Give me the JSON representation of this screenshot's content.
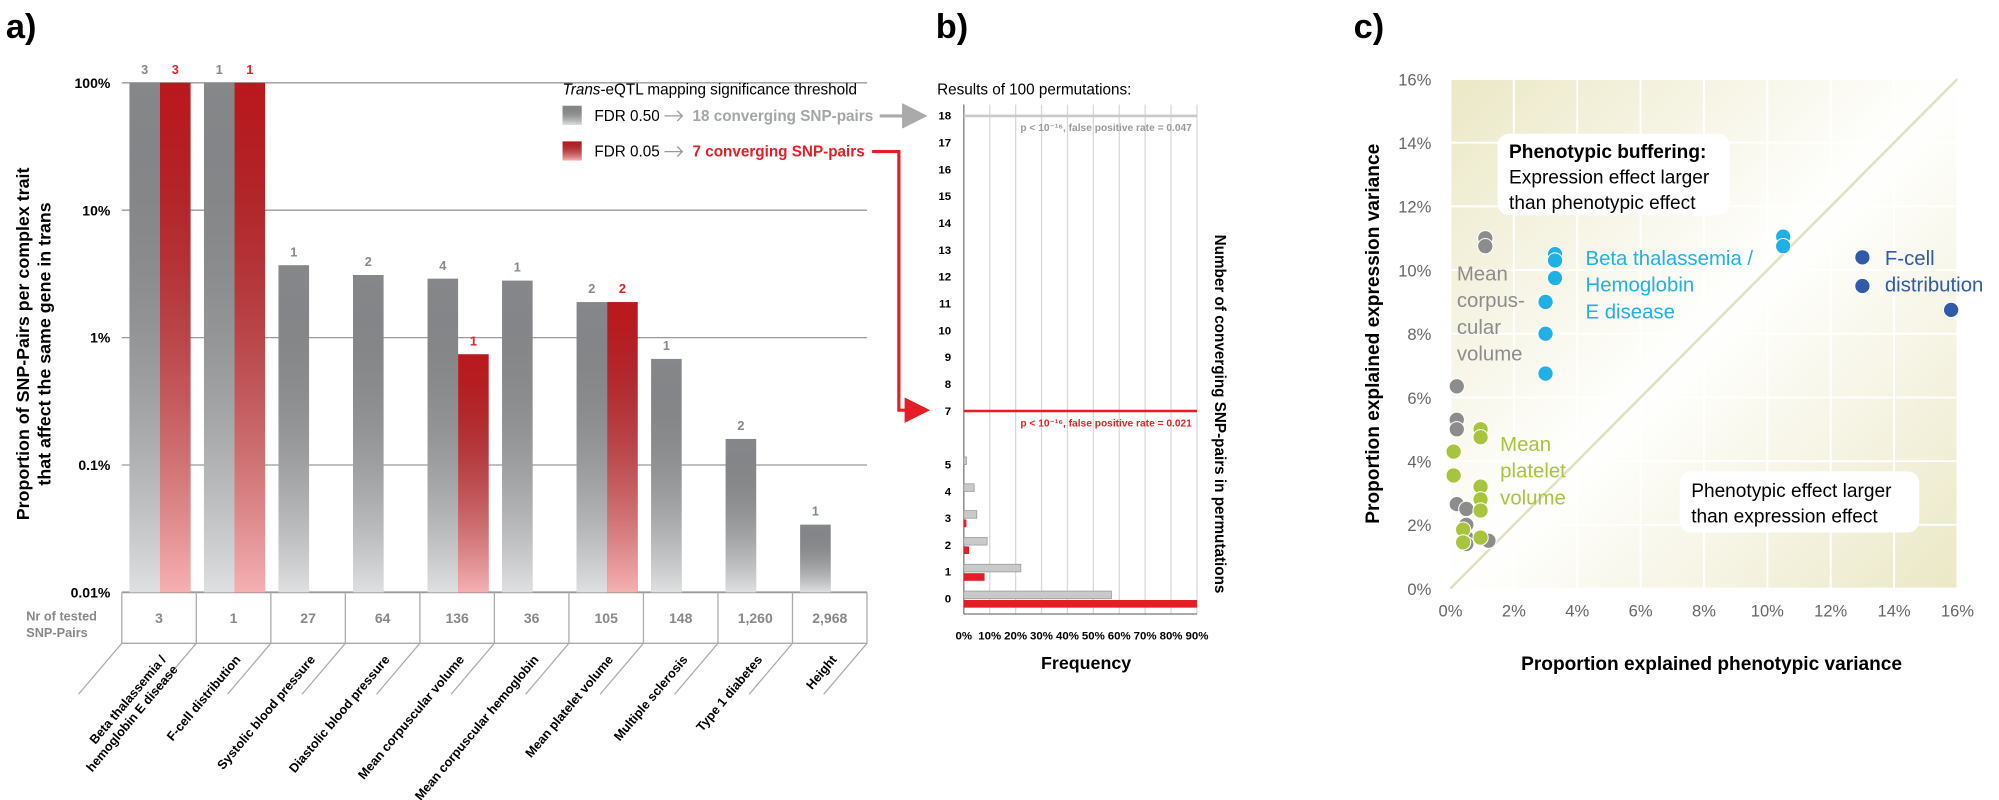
{
  "chart_data": [
    {
      "type": "bar",
      "panel_label": "a)",
      "log_scale": true,
      "y_label": [
        "Proportion of SNP-Pairs per complex trait",
        "that affect the same gene in trans"
      ],
      "categories": [
        [
          "Beta thalassemia /",
          "hemoglobin E disease"
        ],
        "F-cell distribution",
        "Systolic blood pressure",
        "Diastolic blood pressure",
        "Mean corpuscular volume",
        "Mean corpuscular hemoglobin",
        "Mean platelet volume",
        "Multiple sclerosis",
        "Type 1 diabetes",
        "Height"
      ],
      "series": [
        {
          "name": "FDR 0.50",
          "color": "#a3a5a8",
          "values": [
            100,
            100,
            3.7,
            3.1,
            2.9,
            2.8,
            1.9,
            0.68,
            0.16,
            0.034
          ],
          "counts": [
            3,
            1,
            1,
            2,
            4,
            1,
            2,
            1,
            2,
            1
          ],
          "result": "18 converging SNP-pairs"
        },
        {
          "name": "FDR 0.05",
          "color": "#e31e24",
          "values": [
            100,
            100,
            null,
            null,
            0.74,
            null,
            1.9,
            null,
            null,
            null
          ],
          "counts": [
            3,
            1,
            null,
            null,
            1,
            null,
            2,
            null,
            null,
            null
          ],
          "result": "7 converging SNP-pairs"
        }
      ],
      "tested_label": [
        "Nr of tested",
        "SNP-Pairs"
      ],
      "tested": [
        "3",
        "1",
        "27",
        "64",
        "136",
        "36",
        "105",
        "148",
        "1,260",
        "2,968"
      ],
      "legend_title": [
        "Trans",
        "-eQTL mapping significance threshold"
      ],
      "ylim": [
        0.01,
        100
      ],
      "yticks": [
        {
          "value": 0.01,
          "label": "0.01%"
        },
        {
          "value": 0.1,
          "label": "0.1%"
        },
        {
          "value": 1,
          "label": "1%"
        },
        {
          "value": 10,
          "label": "10%"
        },
        {
          "value": 100,
          "label": "100%"
        }
      ],
      "grid": true
    },
    {
      "type": "barh",
      "panel_label": "b)",
      "title": "Results of 100 permutations:",
      "x_label": "Frequency",
      "y_label": "Number of converging SNP-pairs in permutations",
      "categories": [
        0,
        1,
        2,
        3,
        4,
        5,
        null,
        7,
        8,
        9,
        10,
        11,
        12,
        13,
        14,
        15,
        16,
        17,
        18
      ],
      "series": [
        {
          "color": "#c9c9c9",
          "values": [
            57,
            22,
            9,
            5,
            4,
            1,
            0,
            0,
            0,
            0,
            0,
            0,
            0,
            0,
            0,
            0,
            0,
            0,
            0
          ],
          "threshold": 18,
          "threshold_label": "p < 10⁻¹⁶, false positive rate = 0.047"
        },
        {
          "color": "#e31e24",
          "values": [
            90,
            8,
            2,
            1,
            0,
            0,
            0,
            0,
            0,
            0,
            0,
            0,
            0,
            0,
            0,
            0,
            0,
            0,
            0
          ],
          "threshold": 7,
          "threshold_label": "p < 10⁻¹⁶, false positive rate = 0.021"
        }
      ],
      "xlim": [
        0,
        90
      ],
      "xticks": [
        {
          "value": 0,
          "label": "0%"
        },
        {
          "value": 10,
          "label": "10%"
        },
        {
          "value": 20,
          "label": "20%"
        },
        {
          "value": 30,
          "label": "30%"
        },
        {
          "value": 40,
          "label": "40%"
        },
        {
          "value": 50,
          "label": "50%"
        },
        {
          "value": 60,
          "label": "60%"
        },
        {
          "value": 70,
          "label": "70%"
        },
        {
          "value": 80,
          "label": "80%"
        },
        {
          "value": 90,
          "label": "90%"
        }
      ],
      "grid": true
    },
    {
      "type": "scatter",
      "panel_label": "c)",
      "x_label": "Proportion explained phenotypic variance",
      "y_label": "Proportion explained expression variance",
      "buffering_note": [
        "Phenotypic buffering:",
        "Expression effect larger",
        "than phenotypic effect"
      ],
      "phenotypic_note": [
        "Phenotypic effect larger",
        "than expression effect"
      ],
      "series": [
        {
          "name": [
            "Mean",
            "corpus-",
            "cular",
            "volume"
          ],
          "color": "#8c8c8c",
          "x": [
            1.1,
            1.1,
            0.2,
            0.2,
            0.2,
            0.2,
            0.5,
            0.5,
            0.5,
            0.5,
            1.2
          ],
          "y": [
            11.0,
            10.75,
            6.35,
            5.3,
            5.0,
            2.65,
            2.5,
            2.0,
            1.6,
            1.4,
            1.5
          ]
        },
        {
          "name": [
            "Beta thalassemia /",
            "Hemoglobin",
            "E disease"
          ],
          "color": "#1fb1e6",
          "x": [
            3.3,
            3.3,
            3.3,
            3.0,
            3.0,
            3.0,
            10.5,
            10.5
          ],
          "y": [
            10.5,
            10.3,
            9.75,
            9.0,
            8.0,
            6.75,
            11.05,
            10.75
          ]
        },
        {
          "name": [
            "Mean",
            "platelet",
            "volume"
          ],
          "color": "#a8c43c",
          "x": [
            0.1,
            0.1,
            0.95,
            0.95,
            0.95,
            0.95,
            0.95,
            0.4,
            0.4,
            0.95
          ],
          "y": [
            4.3,
            3.55,
            5.0,
            4.75,
            3.2,
            2.8,
            2.45,
            1.85,
            1.45,
            1.6
          ]
        },
        {
          "name": [
            "F-cell",
            "distribution"
          ],
          "color": "#2f5ba8",
          "x": [
            13.0,
            13.0,
            15.8
          ],
          "y": [
            10.4,
            9.5,
            8.75
          ]
        }
      ],
      "xlim": [
        0,
        16
      ],
      "ylim": [
        0,
        16
      ],
      "xticks": [
        {
          "value": 0,
          "label": "0%"
        },
        {
          "value": 2,
          "label": "2%"
        },
        {
          "value": 4,
          "label": "4%"
        },
        {
          "value": 6,
          "label": "6%"
        },
        {
          "value": 8,
          "label": "8%"
        },
        {
          "value": 10,
          "label": "10%"
        },
        {
          "value": 12,
          "label": "12%"
        },
        {
          "value": 14,
          "label": "14%"
        },
        {
          "value": 16,
          "label": "16%"
        }
      ],
      "yticks": [
        {
          "value": 0,
          "label": "0%"
        },
        {
          "value": 2,
          "label": "2%"
        },
        {
          "value": 4,
          "label": "4%"
        },
        {
          "value": 6,
          "label": "6%"
        },
        {
          "value": 8,
          "label": "8%"
        },
        {
          "value": 10,
          "label": "10%"
        },
        {
          "value": 12,
          "label": "12%"
        },
        {
          "value": 14,
          "label": "14%"
        },
        {
          "value": 16,
          "label": "16%"
        }
      ],
      "grid": true
    }
  ]
}
